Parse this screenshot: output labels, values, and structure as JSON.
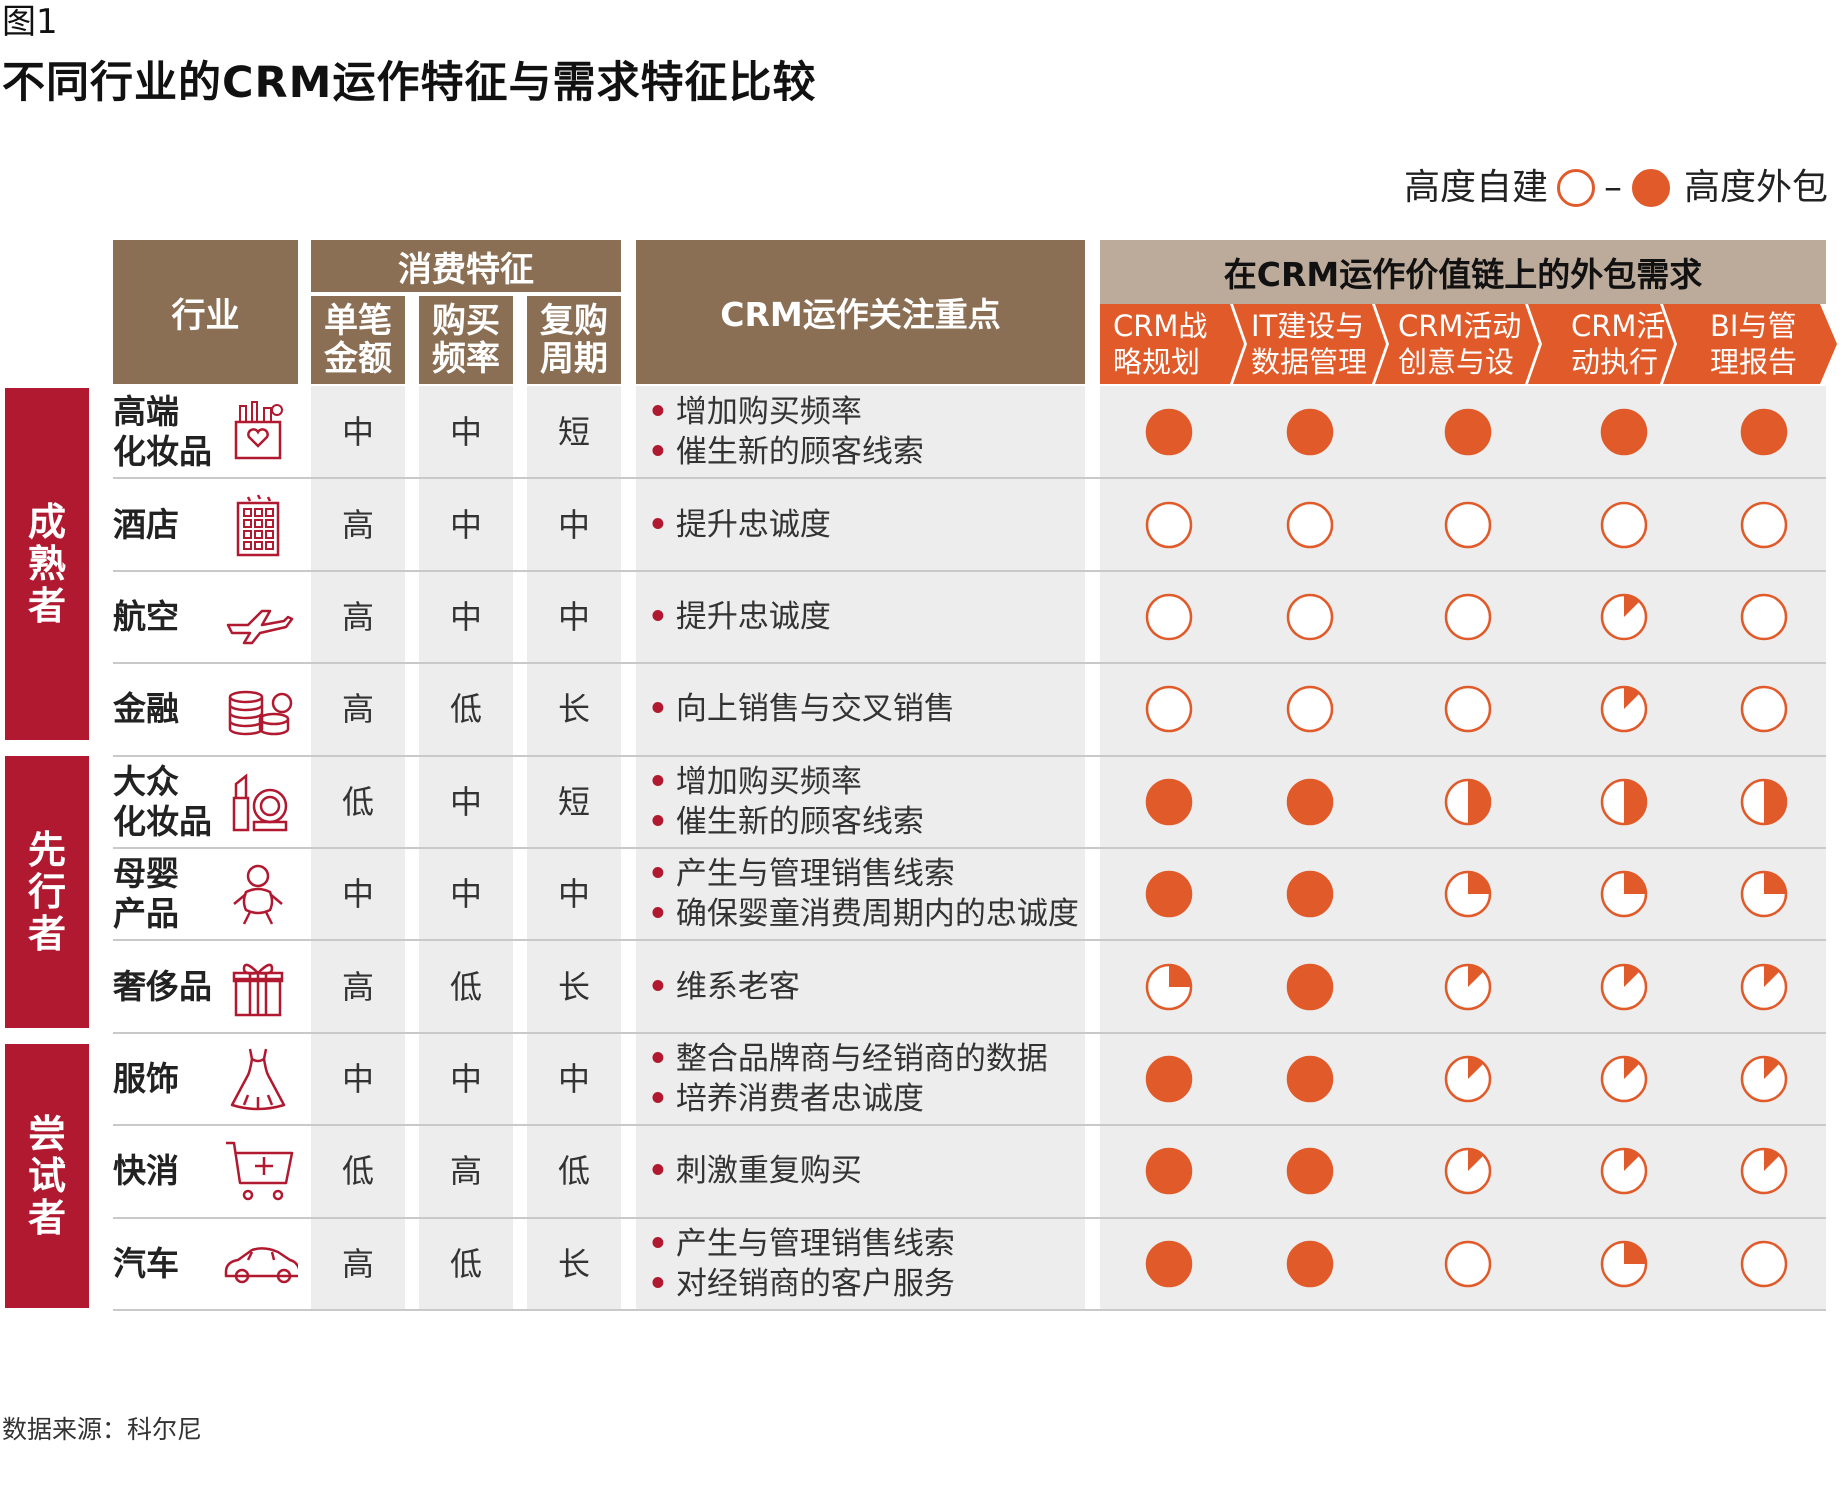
{
  "figure_label": "图1",
  "title": "不同行业的CRM运作特征与需求特征比较",
  "legend": {
    "left": "高度自建",
    "dash": "–",
    "right": "高度外包"
  },
  "headers": {
    "industry": "行业",
    "consumption": "消费特征",
    "consumption_cols": [
      "单笔金额",
      "购买频率",
      "复购周期"
    ],
    "focus": "CRM运作关注重点",
    "value_chain": "在CRM运作价值链上的外包需求",
    "segments": [
      {
        "line1": "CRM战",
        "line2": "略规划"
      },
      {
        "line1": "IT建设与",
        "line2": "数据管理"
      },
      {
        "line1": "CRM活动",
        "line2": "创意与设"
      },
      {
        "line1": "CRM活",
        "line2": "动执行"
      },
      {
        "line1": "BI与管",
        "line2": "理报告"
      }
    ]
  },
  "groups": [
    {
      "lines": [
        "成",
        "熟",
        "者"
      ]
    },
    {
      "lines": [
        "先",
        "行",
        "者"
      ]
    },
    {
      "lines": [
        "尝",
        "试",
        "者"
      ]
    }
  ],
  "colors": {
    "accent": "#e15a29",
    "header_brown": "#8a6f55",
    "group_red": "#b0192f",
    "value_chain_header": "#bcab9a"
  },
  "source": "数据来源：科尔尼",
  "chart_data": {
    "type": "table",
    "value_encoding": "outsourcing level 0 = 高度自建 (empty circle) to 1 = 高度外包 (filled circle)",
    "rows": [
      {
        "group": "成熟者",
        "industry": [
          "高端",
          "化妆品"
        ],
        "icon": "cosmetics-gift-box-icon",
        "amount": "中",
        "frequency": "中",
        "cycle": "短",
        "focus": [
          "增加购买频率",
          "催生新的顾客线索"
        ],
        "outsourcing": [
          1,
          1,
          1,
          1,
          1
        ]
      },
      {
        "group": "成熟者",
        "industry": [
          "酒店"
        ],
        "icon": "hotel-building-icon",
        "amount": "高",
        "frequency": "中",
        "cycle": "中",
        "focus": [
          "提升忠诚度"
        ],
        "outsourcing": [
          0,
          0,
          0,
          0,
          0
        ]
      },
      {
        "group": "成熟者",
        "industry": [
          "航空"
        ],
        "icon": "airplane-icon",
        "amount": "高",
        "frequency": "中",
        "cycle": "中",
        "focus": [
          "提升忠诚度"
        ],
        "outsourcing": [
          0,
          0,
          0,
          0.125,
          0
        ]
      },
      {
        "group": "成熟者",
        "industry": [
          "金融"
        ],
        "icon": "coins-stack-icon",
        "amount": "高",
        "frequency": "低",
        "cycle": "长",
        "focus": [
          "向上销售与交叉销售"
        ],
        "outsourcing": [
          0,
          0,
          0,
          0.125,
          0
        ]
      },
      {
        "group": "先行者",
        "industry": [
          "大众",
          "化妆品"
        ],
        "icon": "lipstick-compact-icon",
        "amount": "低",
        "frequency": "中",
        "cycle": "短",
        "focus": [
          "增加购买频率",
          "催生新的顾客线索"
        ],
        "outsourcing": [
          1,
          1,
          0.5,
          0.5,
          0.5
        ]
      },
      {
        "group": "先行者",
        "industry": [
          "母婴",
          "产品"
        ],
        "icon": "baby-icon",
        "amount": "中",
        "frequency": "中",
        "cycle": "中",
        "focus": [
          "产生与管理销售线索",
          "确保婴童消费周期内的忠诚度"
        ],
        "outsourcing": [
          1,
          1,
          0.25,
          0.25,
          0.25
        ]
      },
      {
        "group": "先行者",
        "industry": [
          "奢侈品"
        ],
        "icon": "gift-box-icon",
        "amount": "高",
        "frequency": "低",
        "cycle": "长",
        "focus": [
          "维系老客"
        ],
        "outsourcing": [
          0.25,
          1,
          0.125,
          0.125,
          0.125
        ]
      },
      {
        "group": "尝试者",
        "industry": [
          "服饰"
        ],
        "icon": "dress-icon",
        "amount": "中",
        "frequency": "中",
        "cycle": "中",
        "focus": [
          "整合品牌商与经销商的数据",
          "培养消费者忠诚度"
        ],
        "outsourcing": [
          1,
          1,
          0.125,
          0.125,
          0.125
        ]
      },
      {
        "group": "尝试者",
        "industry": [
          "快消"
        ],
        "icon": "shopping-cart-icon",
        "amount": "低",
        "frequency": "高",
        "cycle": "低",
        "focus": [
          "刺激重复购买"
        ],
        "outsourcing": [
          1,
          1,
          0.125,
          0.125,
          0.125
        ]
      },
      {
        "group": "尝试者",
        "industry": [
          "汽车"
        ],
        "icon": "car-icon",
        "amount": "高",
        "frequency": "低",
        "cycle": "长",
        "focus": [
          "产生与管理销售线索",
          "对经销商的客户服务"
        ],
        "outsourcing": [
          1,
          1,
          0,
          0.25,
          0
        ]
      }
    ]
  }
}
